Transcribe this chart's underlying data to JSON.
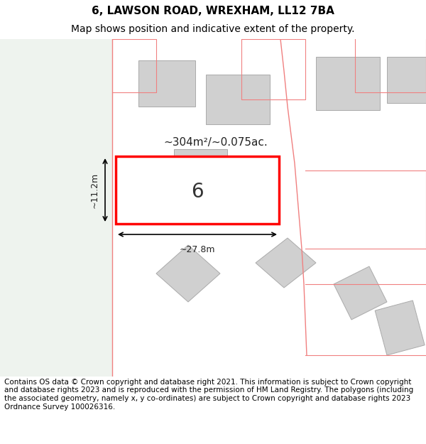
{
  "title": "6, LAWSON ROAD, WREXHAM, LL12 7BA",
  "subtitle": "Map shows position and indicative extent of the property.",
  "area_label": "~304m²/~0.075ac.",
  "width_label": "~27.8m",
  "height_label": "~11.2m",
  "number_label": "6",
  "footer": "Contains OS data © Crown copyright and database right 2021. This information is subject to Crown copyright and database rights 2023 and is reproduced with the permission of HM Land Registry. The polygons (including the associated geometry, namely x, y co-ordinates) are subject to Crown copyright and database rights 2023 Ordnance Survey 100026316.",
  "bg_color": "#ffffff",
  "map_bg": "#ffffff",
  "left_strip_color": "#eef3ee",
  "boundary_color": "#f08080",
  "property_rect_color": "#ff0000",
  "building_color": "#d0d0d0",
  "title_fontsize": 11,
  "subtitle_fontsize": 10,
  "footer_fontsize": 7.5
}
